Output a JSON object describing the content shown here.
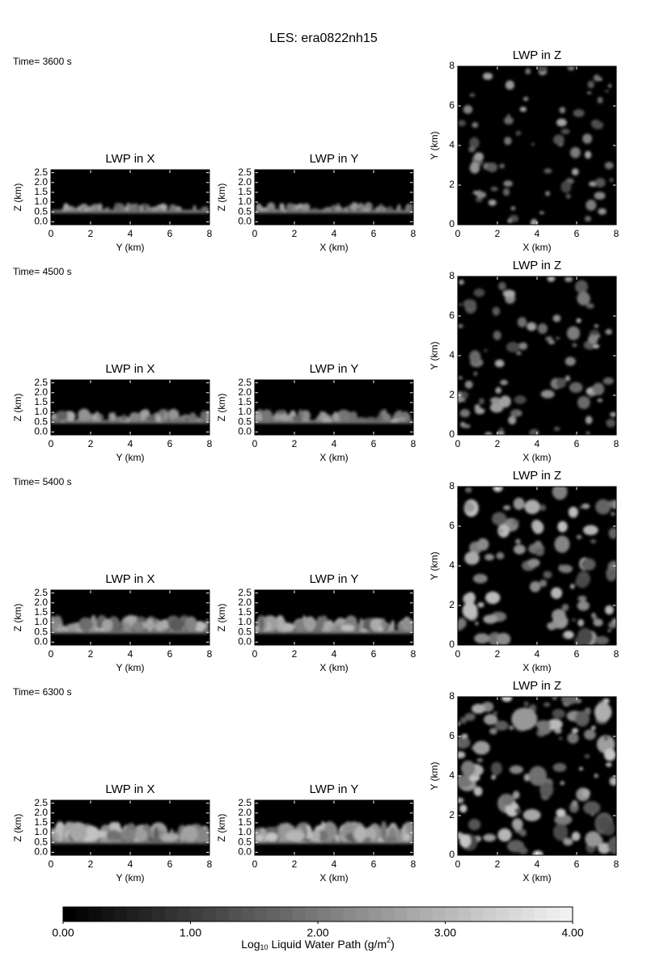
{
  "chart_data": {
    "type": "image-grid",
    "title": "LES: era0822nh15",
    "rows": [
      {
        "time": "Time= 3600 s"
      },
      {
        "time": "Time= 4500 s"
      },
      {
        "time": "Time= 5400 s"
      },
      {
        "time": "Time= 6300 s"
      }
    ],
    "panels": [
      {
        "title": "LWP in X",
        "view": "side",
        "xlabel": "Y (km)",
        "ylabel": "Z (km)",
        "xlim": [
          0,
          8
        ],
        "xticks": [
          0,
          2,
          4,
          6,
          8
        ],
        "ylim": [
          -0.15,
          2.65
        ],
        "yticks": [
          {
            "value": 0,
            "label": "0.0"
          },
          0.5,
          {
            "value": 1,
            "label": "1.0"
          },
          1.5,
          {
            "value": 2,
            "label": "2.0"
          },
          2.5
        ]
      },
      {
        "title": "LWP in Y",
        "view": "side",
        "xlabel": "X (km)",
        "ylabel": "Z (km)",
        "xlim": [
          0,
          8
        ],
        "xticks": [
          0,
          2,
          4,
          6,
          8
        ],
        "ylim": [
          -0.15,
          2.65
        ],
        "yticks": [
          {
            "value": 0,
            "label": "0.0"
          },
          0.5,
          {
            "value": 1,
            "label": "1.0"
          },
          1.5,
          {
            "value": 2,
            "label": "2.0"
          },
          2.5
        ]
      },
      {
        "title": "LWP in Z",
        "view": "top",
        "xlabel": "X (km)",
        "ylabel": "Y (km)",
        "xlim": [
          0,
          8
        ],
        "xticks": [
          0,
          2,
          4,
          6,
          8
        ],
        "ylim": [
          0,
          8
        ],
        "yticks": [
          0,
          2,
          4,
          6,
          8
        ]
      }
    ],
    "colorbar": {
      "label": {
        "pre": "Log",
        "sub": "10",
        "mid": " Liquid Water Path (g/m",
        "sup": "2",
        "post": ")"
      },
      "lim": [
        0,
        4
      ],
      "ticks": [
        {
          "value": 0,
          "label": "0.00"
        },
        {
          "value": 1,
          "label": "1.00"
        },
        {
          "value": 2,
          "label": "2.00"
        },
        {
          "value": 3,
          "label": "3.00"
        },
        {
          "value": 4,
          "label": "4.00"
        }
      ],
      "levels": 40,
      "colormap": [
        "#000000",
        "#f2f2f2"
      ]
    }
  }
}
